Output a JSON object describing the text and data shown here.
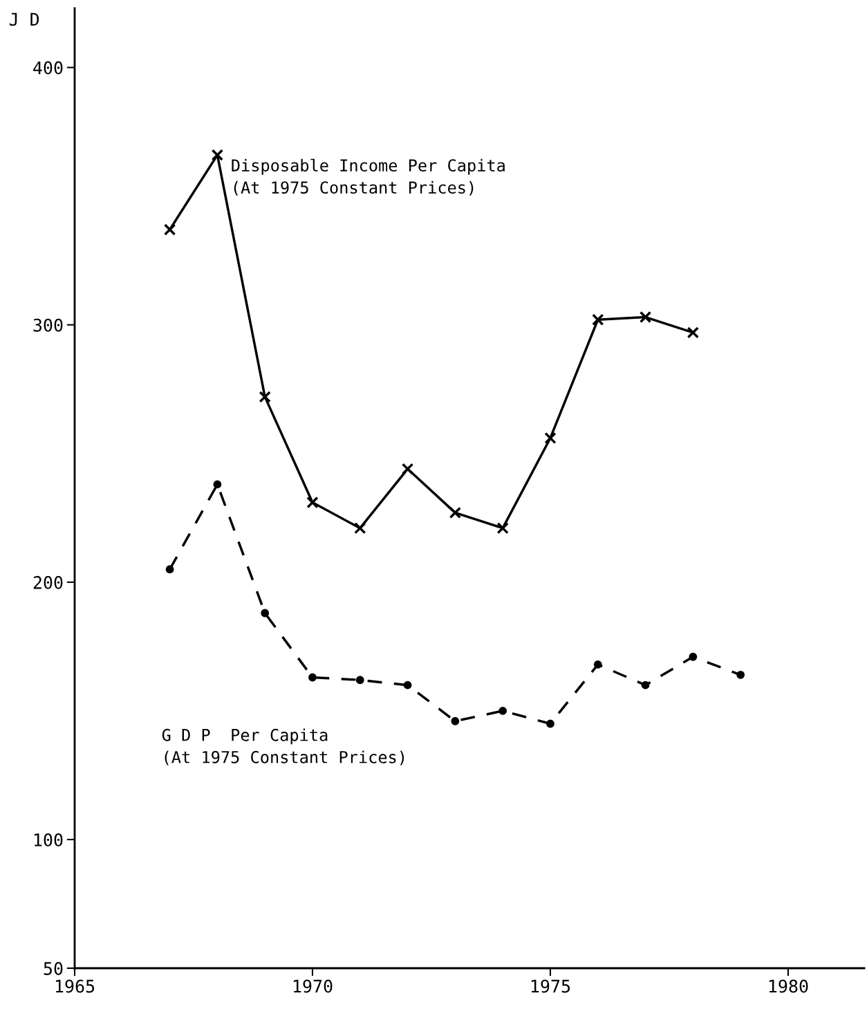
{
  "chart_data": {
    "type": "line",
    "ylabel": "J D",
    "x": [
      1967,
      1968,
      1969,
      1970,
      1971,
      1972,
      1973,
      1974,
      1975,
      1976,
      1977,
      1978,
      1979
    ],
    "series": [
      {
        "name": "Disposable Income Per Capita\n(At 1975 Constant Prices)",
        "color": "#000000",
        "marker": "cross",
        "line_style": "solid",
        "values": [
          337,
          366,
          272,
          231,
          221,
          244,
          227,
          221,
          256,
          302,
          303,
          297,
          null
        ]
      },
      {
        "name": "G D P  Per Capita\n(At 1975 Constant Prices)",
        "color": "#000000",
        "marker": "circle",
        "line_style": "dashed",
        "values": [
          205,
          238,
          188,
          163,
          162,
          160,
          146,
          150,
          145,
          168,
          160,
          171,
          164
        ]
      }
    ],
    "xlim": [
      1965,
      1981.6
    ],
    "xticks": [
      1965,
      1970,
      1975,
      1980
    ],
    "ylim": [
      50,
      423
    ],
    "yticks": [
      50,
      100,
      200,
      300,
      400
    ],
    "grid": false,
    "legend": false
  }
}
